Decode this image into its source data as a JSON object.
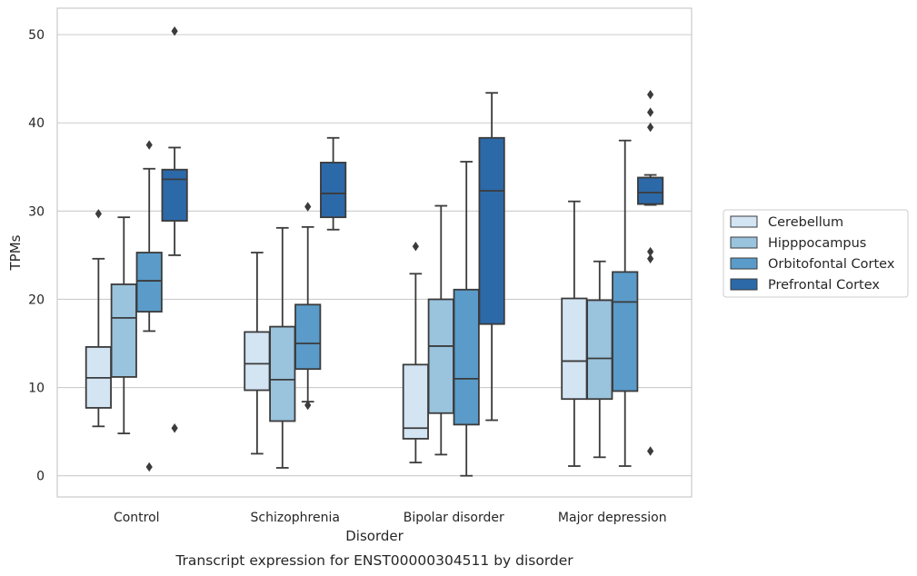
{
  "caption": "Transcript expression for ENST00000304511 by disorder",
  "chart_data": {
    "type": "boxplot",
    "xlabel": "Disorder",
    "ylabel": "TPMs",
    "ylim": [
      -2.4,
      53
    ],
    "yticks": [
      0,
      10,
      20,
      30,
      40,
      50
    ],
    "grid": "horizontal",
    "legend_position": "right",
    "categories": [
      "Control",
      "Schizophrenia",
      "Bipolar disorder",
      "Major depression"
    ],
    "series": [
      {
        "name": "Cerebellum",
        "color": "#d3e4f3",
        "boxes": [
          {
            "whisker_low": 5.6,
            "q1": 7.7,
            "median": 11.1,
            "q3": 14.6,
            "whisker_high": 24.6,
            "outliers": [
              29.7
            ]
          },
          {
            "whisker_low": 2.5,
            "q1": 9.7,
            "median": 12.7,
            "q3": 16.3,
            "whisker_high": 25.3,
            "outliers": []
          },
          {
            "whisker_low": 1.5,
            "q1": 4.2,
            "median": 5.4,
            "q3": 12.6,
            "whisker_high": 22.9,
            "outliers": [
              26.0
            ]
          },
          {
            "whisker_low": 1.1,
            "q1": 8.7,
            "median": 13.0,
            "q3": 20.1,
            "whisker_high": 31.1,
            "outliers": []
          }
        ]
      },
      {
        "name": "Hipppocampus",
        "color": "#9ac3dd",
        "boxes": [
          {
            "whisker_low": 4.8,
            "q1": 11.2,
            "median": 17.9,
            "q3": 21.7,
            "whisker_high": 29.3,
            "outliers": []
          },
          {
            "whisker_low": 0.9,
            "q1": 6.2,
            "median": 10.9,
            "q3": 16.9,
            "whisker_high": 28.1,
            "outliers": []
          },
          {
            "whisker_low": 2.4,
            "q1": 7.1,
            "median": 14.7,
            "q3": 20.0,
            "whisker_high": 30.6,
            "outliers": []
          },
          {
            "whisker_low": 2.1,
            "q1": 8.7,
            "median": 13.3,
            "q3": 19.9,
            "whisker_high": 24.3,
            "outliers": []
          }
        ]
      },
      {
        "name": "Orbitofontal Cortex",
        "color": "#5a9bc9",
        "boxes": [
          {
            "whisker_low": 16.4,
            "q1": 18.6,
            "median": 22.1,
            "q3": 25.3,
            "whisker_high": 34.8,
            "outliers": [
              1.0,
              37.5
            ]
          },
          {
            "whisker_low": 8.4,
            "q1": 12.1,
            "median": 15.0,
            "q3": 19.4,
            "whisker_high": 28.2,
            "outliers": [
              8.0,
              30.5
            ]
          },
          {
            "whisker_low": 0.0,
            "q1": 5.8,
            "median": 11.0,
            "q3": 21.1,
            "whisker_high": 35.6,
            "outliers": []
          },
          {
            "whisker_low": 1.1,
            "q1": 9.6,
            "median": 19.7,
            "q3": 23.1,
            "whisker_high": 38.0,
            "outliers": []
          }
        ]
      },
      {
        "name": "Prefrontal Cortex",
        "color": "#2c69a9",
        "boxes": [
          {
            "whisker_low": 25.0,
            "q1": 28.9,
            "median": 33.6,
            "q3": 34.7,
            "whisker_high": 37.2,
            "outliers": [
              5.4,
              50.4
            ]
          },
          {
            "whisker_low": 27.9,
            "q1": 29.3,
            "median": 32.0,
            "q3": 35.5,
            "whisker_high": 38.3,
            "outliers": []
          },
          {
            "whisker_low": 6.3,
            "q1": 17.2,
            "median": 32.3,
            "q3": 38.3,
            "whisker_high": 43.4,
            "outliers": []
          },
          {
            "whisker_low": 30.7,
            "q1": 30.8,
            "median": 32.1,
            "q3": 33.8,
            "whisker_high": 34.1,
            "outliers": [
              2.8,
              24.6,
              25.4,
              39.5,
              41.2,
              43.2
            ]
          }
        ]
      }
    ]
  }
}
